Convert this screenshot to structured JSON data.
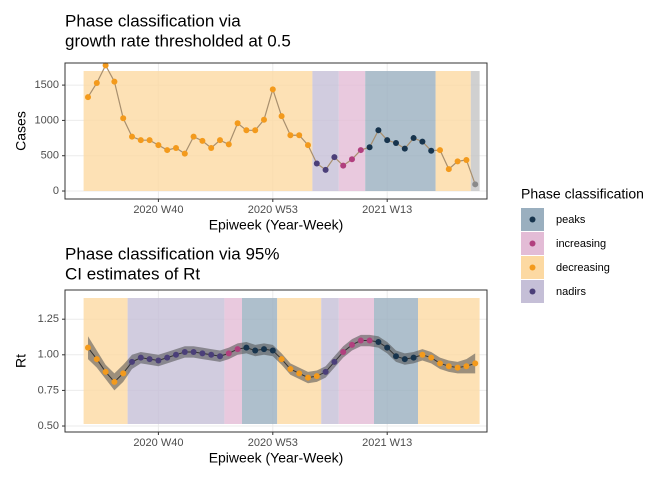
{
  "chart_data": [
    {
      "type": "line",
      "title": [
        "Phase classification via",
        "growth rate thresholded at 0.5"
      ],
      "x_label": "Epiweek (Year-Week)",
      "y_label": "Cases",
      "categories": [
        null,
        null,
        null,
        null,
        null,
        null,
        null,
        null,
        "2020 W40",
        null,
        null,
        null,
        null,
        null,
        null,
        null,
        null,
        null,
        null,
        null,
        null,
        "2020 W53",
        null,
        null,
        null,
        null,
        null,
        null,
        null,
        null,
        null,
        null,
        null,
        null,
        "2021 W13",
        null,
        null,
        null,
        null,
        null,
        null,
        null,
        null,
        null,
        null
      ],
      "values": [
        1330,
        1530,
        1780,
        1550,
        1030,
        770,
        720,
        720,
        650,
        580,
        610,
        530,
        770,
        710,
        610,
        720,
        660,
        960,
        860,
        860,
        1010,
        1440,
        1060,
        790,
        790,
        650,
        390,
        300,
        480,
        360,
        450,
        580,
        620,
        860,
        720,
        680,
        600,
        750,
        700,
        570,
        580,
        310,
        420,
        440,
        95
      ],
      "phases": [
        "decreasing",
        "decreasing",
        "decreasing",
        "decreasing",
        "decreasing",
        "decreasing",
        "decreasing",
        "decreasing",
        "decreasing",
        "decreasing",
        "decreasing",
        "decreasing",
        "decreasing",
        "decreasing",
        "decreasing",
        "decreasing",
        "decreasing",
        "decreasing",
        "decreasing",
        "decreasing",
        "decreasing",
        "decreasing",
        "decreasing",
        "decreasing",
        "decreasing",
        "decreasing",
        "nadirs",
        "nadirs",
        "nadirs",
        "increasing",
        "increasing",
        "increasing",
        "peaks",
        "peaks",
        "peaks",
        "peaks",
        "peaks",
        "peaks",
        "peaks",
        "peaks",
        "decreasing",
        "decreasing",
        "decreasing",
        "decreasing",
        null
      ],
      "line_color": "#a88f6e",
      "ylim": [
        -113,
        1813
      ],
      "yticks": [
        0,
        500,
        1000,
        1500
      ],
      "grid": true
    },
    {
      "type": "ribbon",
      "title": [
        "Phase classification via 95%",
        "CI estimates of Rt"
      ],
      "x_label": "Epiweek (Year-Week)",
      "y_label": "Rt",
      "categories": [
        null,
        null,
        null,
        null,
        null,
        null,
        null,
        null,
        "2020 W40",
        null,
        null,
        null,
        null,
        null,
        null,
        null,
        null,
        null,
        null,
        null,
        null,
        "2020 W53",
        null,
        null,
        null,
        null,
        null,
        null,
        null,
        null,
        null,
        null,
        null,
        null,
        "2021 W13",
        null,
        null,
        null,
        null,
        null,
        null,
        null,
        null,
        null,
        null
      ],
      "values": [
        1.05,
        0.97,
        0.88,
        0.81,
        0.87,
        0.95,
        0.98,
        0.97,
        0.96,
        0.98,
        1.0,
        1.02,
        1.02,
        1.01,
        1.0,
        0.99,
        1.01,
        1.04,
        1.05,
        1.03,
        1.04,
        1.03,
        0.97,
        0.9,
        0.87,
        0.84,
        0.85,
        0.88,
        0.95,
        1.02,
        1.07,
        1.1,
        1.1,
        1.09,
        1.05,
        0.99,
        0.97,
        0.98,
        1.0,
        0.98,
        0.94,
        0.92,
        0.91,
        0.92,
        0.94
      ],
      "lower": [
        0.97,
        0.91,
        0.83,
        0.75,
        0.81,
        0.9,
        0.94,
        0.93,
        0.92,
        0.94,
        0.96,
        0.98,
        0.98,
        0.97,
        0.96,
        0.95,
        0.97,
        1.0,
        1.01,
        0.99,
        1.0,
        0.99,
        0.93,
        0.86,
        0.83,
        0.8,
        0.81,
        0.84,
        0.91,
        0.98,
        1.03,
        1.06,
        1.06,
        1.05,
        1.01,
        0.95,
        0.93,
        0.94,
        0.96,
        0.94,
        0.9,
        0.88,
        0.87,
        0.87,
        0.87
      ],
      "upper": [
        1.13,
        1.03,
        0.93,
        0.87,
        0.93,
        1.0,
        1.02,
        1.01,
        1.0,
        1.02,
        1.04,
        1.06,
        1.06,
        1.05,
        1.04,
        1.03,
        1.05,
        1.08,
        1.09,
        1.07,
        1.08,
        1.07,
        1.01,
        0.94,
        0.91,
        0.88,
        0.89,
        0.92,
        0.99,
        1.06,
        1.11,
        1.14,
        1.14,
        1.13,
        1.09,
        1.03,
        1.01,
        1.02,
        1.04,
        1.02,
        0.98,
        0.96,
        0.95,
        0.97,
        1.01
      ],
      "phases": [
        "decreasing",
        "decreasing",
        "decreasing",
        "decreasing",
        "decreasing",
        "nadirs",
        "nadirs",
        "nadirs",
        "nadirs",
        "nadirs",
        "nadirs",
        "nadirs",
        "nadirs",
        "nadirs",
        "nadirs",
        "nadirs",
        "increasing",
        "increasing",
        "peaks",
        "peaks",
        "peaks",
        "peaks",
        "decreasing",
        "decreasing",
        "decreasing",
        "decreasing",
        "decreasing",
        "nadirs",
        "nadirs",
        "increasing",
        "increasing",
        "increasing",
        "increasing",
        "peaks",
        "peaks",
        "peaks",
        "peaks",
        "peaks",
        "decreasing",
        "decreasing",
        "decreasing",
        "decreasing",
        "decreasing",
        "decreasing",
        "decreasing"
      ],
      "ribbon_color": "#4d4d4d",
      "ylim": [
        0.458,
        1.455
      ],
      "yticks": [
        {
          "value": 0.5,
          "label": "0.50"
        },
        {
          "value": 0.75,
          "label": "0.75"
        },
        {
          "value": 1,
          "label": "1.00"
        },
        {
          "value": 1.25,
          "label": "1.25"
        }
      ],
      "grid": true
    }
  ],
  "legend": {
    "title": "Phase classification",
    "na_color": "#8a8a8a",
    "na_fill": "#c4c4c4",
    "items": [
      {
        "name": "peaks",
        "color": "#17344d",
        "fill": "#9aafbf"
      },
      {
        "name": "increasing",
        "color": "#b13f7e",
        "fill": "#e3bcd6"
      },
      {
        "name": "decreasing",
        "color": "#f39a1c",
        "fill": "#fcd9a2"
      },
      {
        "name": "nadirs",
        "color": "#4b3f79",
        "fill": "#c5bfd7"
      }
    ]
  }
}
